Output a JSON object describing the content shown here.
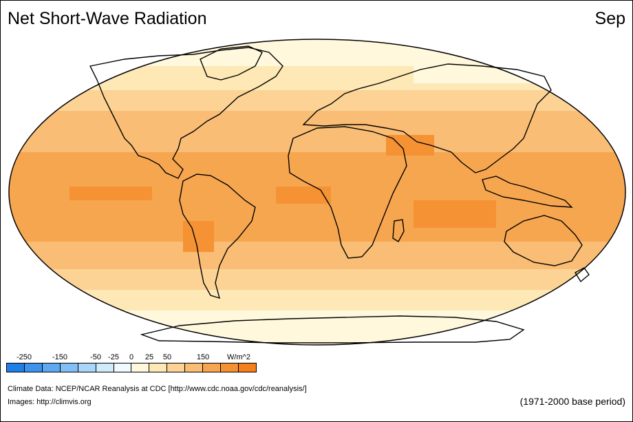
{
  "header": {
    "title": "Net Short-Wave Radiation",
    "month": "Sep"
  },
  "legend": {
    "labels": [
      {
        "text": "-250",
        "idx": 1
      },
      {
        "text": "-150",
        "idx": 3
      },
      {
        "text": "-50",
        "idx": 5
      },
      {
        "text": "-25",
        "idx": 6
      },
      {
        "text": "0",
        "idx": 7
      },
      {
        "text": "25",
        "idx": 8
      },
      {
        "text": "50",
        "idx": 9
      },
      {
        "text": "150",
        "idx": 11
      },
      {
        "text": "W/m^2",
        "idx": 13
      }
    ],
    "colors": [
      "#1f7fe6",
      "#3d92ec",
      "#5ea8f1",
      "#82bff5",
      "#a9d6f9",
      "#d0ecfc",
      "#f0fbff",
      "#fff8dc",
      "#fde8b6",
      "#fcd395",
      "#f9bd75",
      "#f7a650",
      "#f59234",
      "#f57f1c"
    ]
  },
  "map": {
    "colors": {
      "ocean_outline": "#000000",
      "band_polar": "#fff8dc",
      "band_subpolar": "#fde8b6",
      "band_midlat": "#fcd395",
      "band_subtropic": "#f9bd75",
      "band_tropic": "#f7a650",
      "band_peak": "#f59234"
    }
  },
  "footer": {
    "credit_data": "Climate Data:  NCEP/NCAR Reanalysis at CDC [http://www.cdc.noaa.gov/cdc/reanalysis/]",
    "credit_images": "Images:  http://climvis.org",
    "base_period": "(1971-2000 base period)"
  }
}
